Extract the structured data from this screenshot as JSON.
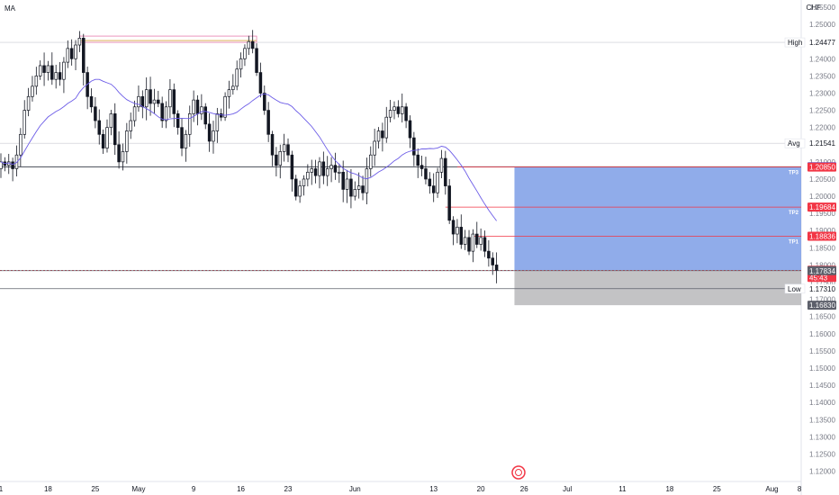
{
  "indicator_label": "MA",
  "currency_label": "CHF",
  "colors": {
    "candle": "#131722",
    "ma": "#6c5ce7",
    "target_zone": "#7c9ee6",
    "stop_zone": "#a9a9ad",
    "level_red": "#f23645",
    "level_blue": "#2962ff",
    "high_line": "#e77fae",
    "high_line_inner": "#d9a441"
  },
  "chart_data": {
    "type": "candlestick",
    "instrument_currency": "CHF",
    "x_ticks": [
      {
        "label": "1",
        "i": 0
      },
      {
        "label": "18",
        "i": 12
      },
      {
        "label": "25",
        "i": 24
      },
      {
        "label": "May",
        "i": 35
      },
      {
        "label": "9",
        "i": 49
      },
      {
        "label": "16",
        "i": 61
      },
      {
        "label": "23",
        "i": 73
      },
      {
        "label": "Jun",
        "i": 90
      },
      {
        "label": "13",
        "i": 110
      },
      {
        "label": "20",
        "i": 122
      },
      {
        "label": "26",
        "i": 133
      },
      {
        "label": "Jul",
        "i": 144
      },
      {
        "label": "11",
        "i": 158
      },
      {
        "label": "18",
        "i": 170
      },
      {
        "label": "25",
        "i": 182
      },
      {
        "label": "Aug",
        "i": 196
      },
      {
        "label": "8",
        "i": 203
      }
    ],
    "y_ticks": [
      "1.25500",
      "1.25000",
      "1.24000",
      "1.23500",
      "1.23000",
      "1.22500",
      "1.22000",
      "1.21500",
      "1.21000",
      "1.20500",
      "1.20000",
      "1.19500",
      "1.19000",
      "1.18500",
      "1.18000",
      "1.17500",
      "1.17000",
      "1.16500",
      "1.16000",
      "1.15500",
      "1.15000",
      "1.14500",
      "1.14000",
      "1.13500",
      "1.13000",
      "1.12500",
      "1.12000"
    ],
    "y_range": [
      1.117,
      1.2571
    ],
    "levels": {
      "high": {
        "label": "High",
        "value": "1.24477"
      },
      "avg": {
        "label": "Avg",
        "value": "1.21541"
      },
      "resistance": "1.20859",
      "tp3": {
        "label": "TP3",
        "value": "1.20850"
      },
      "tp2": {
        "label": "TP2",
        "value": "1.19684"
      },
      "tp1": {
        "label": "TP1",
        "value": "1.18836"
      },
      "last_price": {
        "value": "1.17846",
        "countdown": "45:43"
      },
      "support": "1.17834",
      "low": {
        "label": "Low",
        "value": "1.17310"
      },
      "stop": "1.16830"
    },
    "position": {
      "entry": 1.17846,
      "target": 1.2085,
      "stop": 1.1683,
      "start_i": 131
    },
    "candles_close": [
      1.21,
      1.209,
      1.21,
      1.208,
      1.212,
      1.218,
      1.225,
      1.229,
      1.232,
      1.235,
      1.238,
      1.236,
      1.238,
      1.234,
      1.236,
      1.234,
      1.239,
      1.243,
      1.24,
      1.244,
      1.246,
      1.236,
      1.229,
      1.226,
      1.222,
      1.218,
      1.214,
      1.22,
      1.224,
      1.215,
      1.21,
      1.213,
      1.219,
      1.222,
      1.226,
      1.229,
      1.226,
      1.231,
      1.227,
      1.228,
      1.227,
      1.222,
      1.226,
      1.231,
      1.224,
      1.22,
      1.214,
      1.218,
      1.224,
      1.228,
      1.224,
      1.226,
      1.221,
      1.216,
      1.219,
      1.224,
      1.223,
      1.229,
      1.231,
      1.232,
      1.237,
      1.24,
      1.243,
      1.245,
      1.243,
      1.236,
      1.23,
      1.225,
      1.218,
      1.212,
      1.209,
      1.213,
      1.215,
      1.212,
      1.205,
      1.2,
      1.203,
      1.205,
      1.207,
      1.208,
      1.206,
      1.21,
      1.206,
      1.208,
      1.209,
      1.207,
      1.207,
      1.202,
      1.205,
      1.2,
      1.202,
      1.203,
      1.201,
      1.208,
      1.212,
      1.216,
      1.219,
      1.217,
      1.223,
      1.225,
      1.226,
      1.224,
      1.226,
      1.222,
      1.217,
      1.212,
      1.209,
      1.208,
      1.205,
      1.203,
      1.201,
      1.207,
      1.211,
      1.203,
      1.193,
      1.189,
      1.191,
      1.186,
      1.188,
      1.184,
      1.189,
      1.186,
      1.188,
      1.184,
      1.182,
      1.18,
      1.1785
    ]
  }
}
